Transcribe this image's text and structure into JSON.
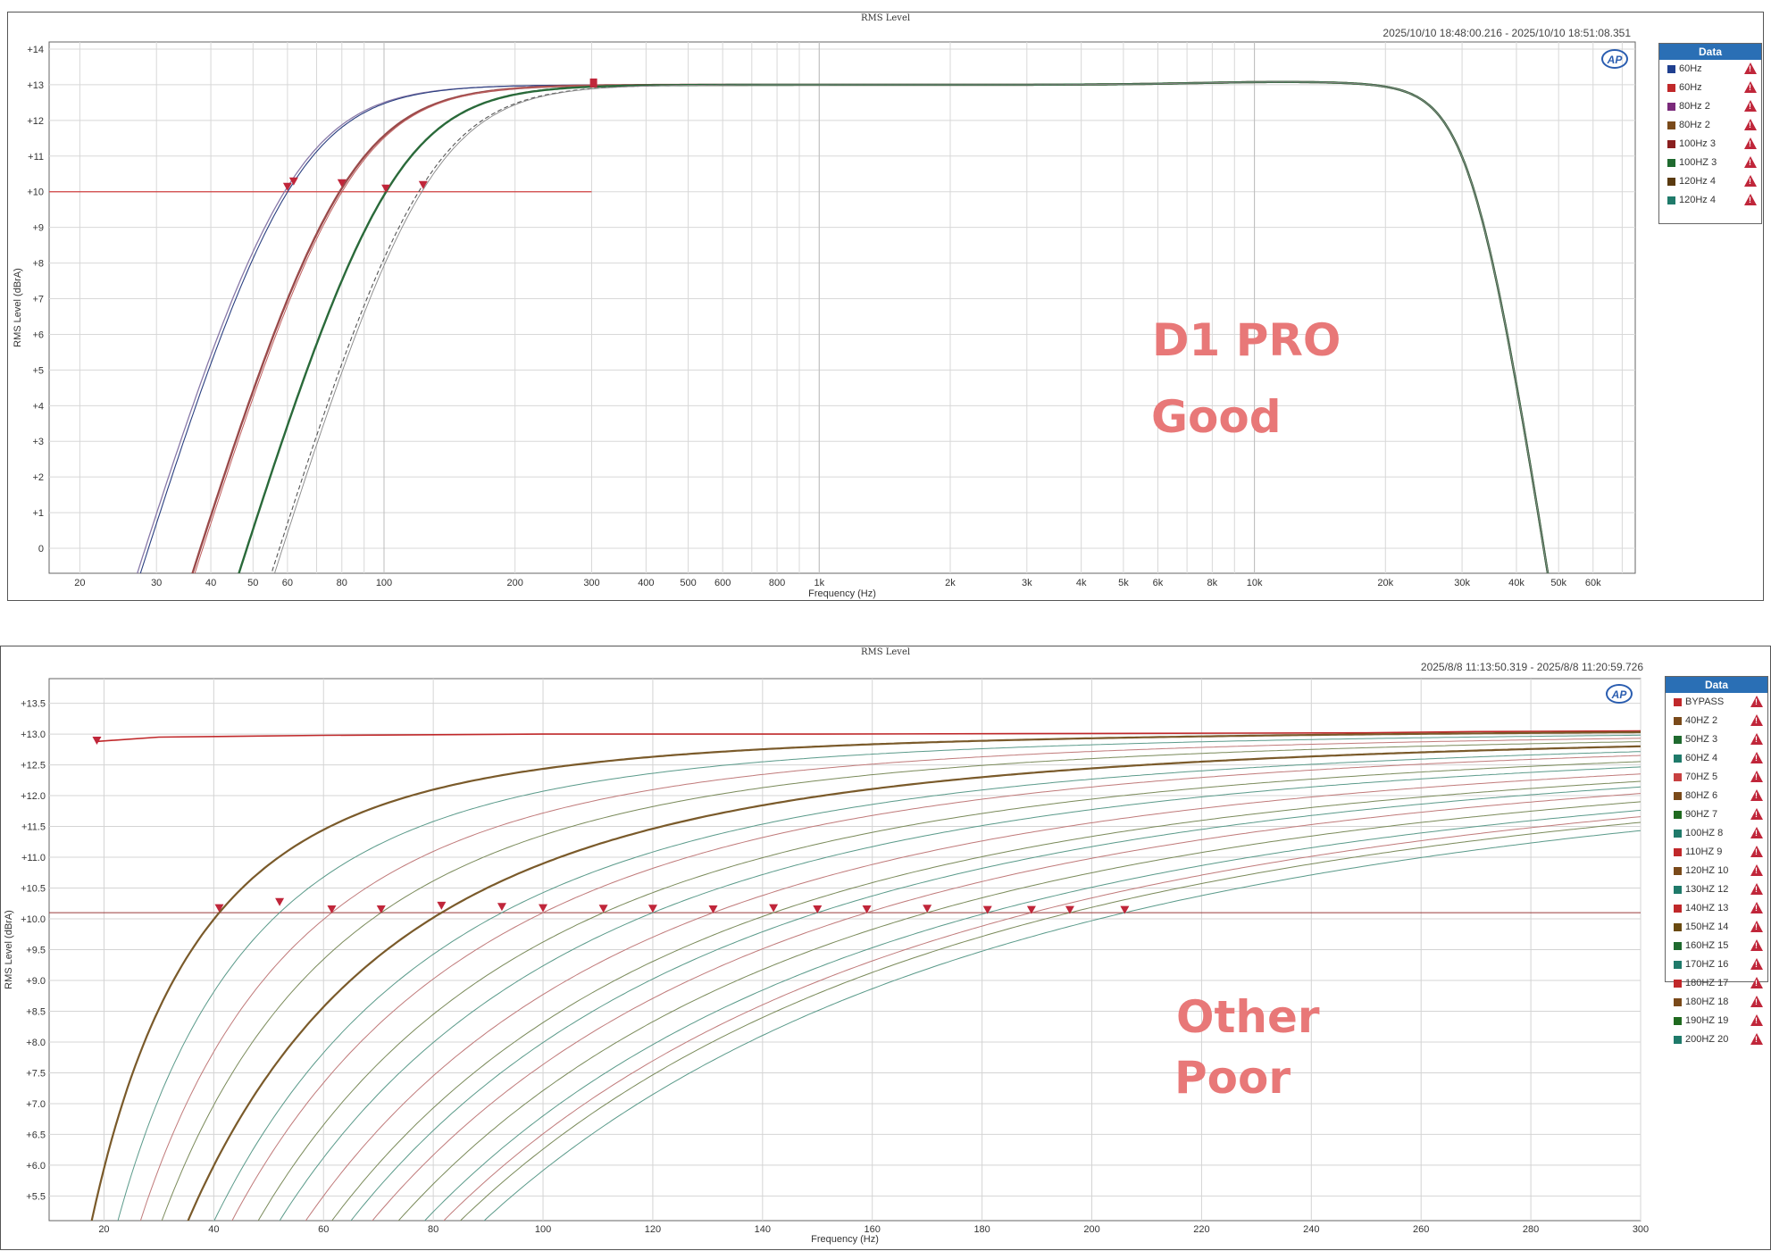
{
  "panel1": {
    "title": "RMS Level",
    "date_range": "2025/10/10 18:48:00.216 - 2025/10/10 18:51:08.351",
    "logo": "AP",
    "legend_title": "Data",
    "legend": [
      {
        "label": "60Hz",
        "color": "#1f3f8f"
      },
      {
        "label": "60Hz",
        "color": "#c0282a"
      },
      {
        "label": "80Hz 2",
        "color": "#7a2a7a"
      },
      {
        "label": "80Hz 2",
        "color": "#7a4a1a"
      },
      {
        "label": "100Hz 3",
        "color": "#8a1f1f"
      },
      {
        "label": "100HZ 3",
        "color": "#1f6a2f"
      },
      {
        "label": "120Hz 4",
        "color": "#5a3a10"
      },
      {
        "label": "120Hz 4",
        "color": "#1f7a6a"
      }
    ],
    "annotations": [
      "D1 PRO",
      "Good"
    ]
  },
  "panel2": {
    "title": "RMS Level",
    "date_range": "2025/8/8 11:13:50.319 - 2025/8/8 11:20:59.726",
    "logo": "AP",
    "legend_title": "Data",
    "legend": [
      {
        "label": "BYPASS",
        "color": "#c0282a"
      },
      {
        "label": "40HZ 2",
        "color": "#7a4a1a"
      },
      {
        "label": "50HZ 3",
        "color": "#1f6a2f"
      },
      {
        "label": "60HZ 4",
        "color": "#1f7a6a"
      },
      {
        "label": "70HZ 5",
        "color": "#c84040"
      },
      {
        "label": "80HZ 6",
        "color": "#7a4a1a"
      },
      {
        "label": "90HZ 7",
        "color": "#1f6a1f"
      },
      {
        "label": "100HZ 8",
        "color": "#1f7a6a"
      },
      {
        "label": "110HZ 9",
        "color": "#c0282a"
      },
      {
        "label": "120HZ 10",
        "color": "#7a4a1a"
      },
      {
        "label": "130HZ 12",
        "color": "#1f7a6a"
      },
      {
        "label": "140HZ 13",
        "color": "#c0282a"
      },
      {
        "label": "150HZ 14",
        "color": "#6a4a10"
      },
      {
        "label": "160HZ 15",
        "color": "#1f6a2f"
      },
      {
        "label": "170HZ 16",
        "color": "#1f7a6a"
      },
      {
        "label": "180HZ 17",
        "color": "#c0282a"
      },
      {
        "label": "180HZ 18",
        "color": "#7a4a1a"
      },
      {
        "label": "190HZ 19",
        "color": "#1f6a1f"
      },
      {
        "label": "200HZ 20",
        "color": "#1f7a6a"
      }
    ],
    "annotations": [
      "Other",
      "Poor"
    ]
  },
  "chart_data": [
    {
      "type": "line",
      "title": "RMS Level",
      "xlabel": "Frequency (Hz)",
      "ylabel": "RMS Level (dBrA)",
      "xscale": "log",
      "xlim": [
        17,
        75000
      ],
      "ylim": [
        -0.7,
        14.2
      ],
      "x_ticks": [
        20,
        30,
        40,
        50,
        60,
        80,
        100,
        200,
        300,
        400,
        500,
        600,
        800,
        1000,
        2000,
        3000,
        4000,
        5000,
        6000,
        8000,
        10000,
        20000,
        30000,
        40000,
        50000,
        60000
      ],
      "x_tick_labels": [
        "20",
        "30",
        "40",
        "50",
        "60",
        "80",
        "100",
        "200",
        "300",
        "400",
        "500",
        "600",
        "800",
        "1k",
        "2k",
        "3k",
        "4k",
        "5k",
        "6k",
        "8k",
        "10k",
        "20k",
        "30k",
        "40k",
        "50k",
        "60k"
      ],
      "y_ticks": [
        0,
        1,
        2,
        3,
        4,
        5,
        6,
        7,
        8,
        9,
        10,
        11,
        12,
        13,
        14
      ],
      "y_tick_labels": [
        "0",
        "+1",
        "+2",
        "+3",
        "+4",
        "+5",
        "+6",
        "+7",
        "+8",
        "+9",
        "+10",
        "+11",
        "+12",
        "+13",
        "+14"
      ],
      "grid": true,
      "legend_position": "right",
      "level": 13.0,
      "lowpass_corner": 32000,
      "series": [
        {
          "color": "#8878a8",
          "cutoff": 59,
          "width": 1.3
        },
        {
          "color": "#2a3f80",
          "cutoff": 60,
          "width": 1.1
        },
        {
          "color": "#9a4a4a",
          "cutoff": 79,
          "width": 2.4
        },
        {
          "color": "#c06060",
          "cutoff": 80,
          "width": 1.0
        },
        {
          "color": "#2a6a3a",
          "cutoff": 101,
          "width": 2.4
        },
        {
          "color": "#555555",
          "cutoff": 120,
          "width": 1.1,
          "dashed": true
        },
        {
          "color": "#888888",
          "cutoff": 122,
          "width": 0.9
        }
      ],
      "reference_line": {
        "y": 10,
        "x_from": 17,
        "x_to": 300,
        "color": "#d04040"
      },
      "markers": [
        {
          "x": 60,
          "y": 10.15
        },
        {
          "x": 62,
          "y": 10.3
        },
        {
          "x": 80,
          "y": 10.25
        },
        {
          "x": 101,
          "y": 10.1
        },
        {
          "x": 123,
          "y": 10.2
        }
      ],
      "square_marker": {
        "x": 303,
        "y": 13.05
      }
    },
    {
      "type": "line",
      "title": "RMS Level",
      "xlabel": "Frequency (Hz)",
      "ylabel": "RMS Level (dBrA)",
      "xlim": [
        10,
        300
      ],
      "ylim": [
        5.1,
        13.9
      ],
      "x_ticks": [
        20,
        40,
        60,
        80,
        100,
        120,
        140,
        160,
        180,
        200,
        220,
        240,
        260,
        280,
        300
      ],
      "x_tick_labels": [
        "20",
        "40",
        "60",
        "80",
        "100",
        "120",
        "140",
        "160",
        "180",
        "200",
        "220",
        "240",
        "260",
        "280",
        "300"
      ],
      "y_ticks": [
        5.5,
        6,
        6.5,
        7,
        7.5,
        8,
        8.5,
        9,
        9.5,
        10,
        10.5,
        11,
        11.5,
        12,
        12.5,
        13,
        13.5
      ],
      "y_tick_labels": [
        "+5.5",
        "+6.0",
        "+6.5",
        "+7.0",
        "+7.5",
        "+8.0",
        "+8.5",
        "+9.0",
        "+9.5",
        "+10.0",
        "+10.5",
        "+11.0",
        "+11.5",
        "+12.0",
        "+12.5",
        "+13.0",
        "+13.5"
      ],
      "grid": true,
      "legend_position": "right",
      "bypass": {
        "x": [
          18.5,
          30,
          60,
          100,
          150,
          200,
          250,
          270,
          300
        ],
        "y": [
          12.88,
          12.95,
          12.98,
          13.0,
          13.0,
          13.01,
          13.02,
          13.04,
          13.05
        ],
        "color": "#c0282a"
      },
      "level": 13.0,
      "cutoffs": [
        41,
        52,
        61.5,
        70.5,
        81.5,
        92.5,
        100,
        111,
        120,
        131,
        142,
        150,
        159,
        170,
        181,
        189,
        196,
        206
      ],
      "series_colors": [
        "#7a5a2a",
        "#5a9a8a",
        "#c07a7a",
        "#7a8a5a",
        "#7a5a2a",
        "#5a9a8a",
        "#c07a7a",
        "#7a8a5a",
        "#5a9a8a",
        "#c07a7a",
        "#7a8a5a",
        "#5a9a8a",
        "#c07a7a",
        "#7a8a5a",
        "#5a9a8a",
        "#c07a7a",
        "#7a8a5a",
        "#5a9a8a"
      ],
      "bold_series": [
        0,
        4
      ],
      "reference_line": {
        "y": 10.1,
        "color": "#9a3a3a"
      },
      "markers": [
        {
          "x": 18.7,
          "y": 12.9
        },
        {
          "x": 41,
          "y": 10.18
        },
        {
          "x": 52,
          "y": 10.28
        },
        {
          "x": 61.5,
          "y": 10.16
        },
        {
          "x": 70.5,
          "y": 10.16
        },
        {
          "x": 81.5,
          "y": 10.22
        },
        {
          "x": 92.5,
          "y": 10.2
        },
        {
          "x": 100,
          "y": 10.18
        },
        {
          "x": 111,
          "y": 10.17
        },
        {
          "x": 120,
          "y": 10.17
        },
        {
          "x": 131,
          "y": 10.16
        },
        {
          "x": 142,
          "y": 10.18
        },
        {
          "x": 150,
          "y": 10.16
        },
        {
          "x": 159,
          "y": 10.16
        },
        {
          "x": 170,
          "y": 10.17
        },
        {
          "x": 181,
          "y": 10.15
        },
        {
          "x": 189,
          "y": 10.15
        },
        {
          "x": 196,
          "y": 10.15
        },
        {
          "x": 206,
          "y": 10.15
        }
      ]
    }
  ]
}
